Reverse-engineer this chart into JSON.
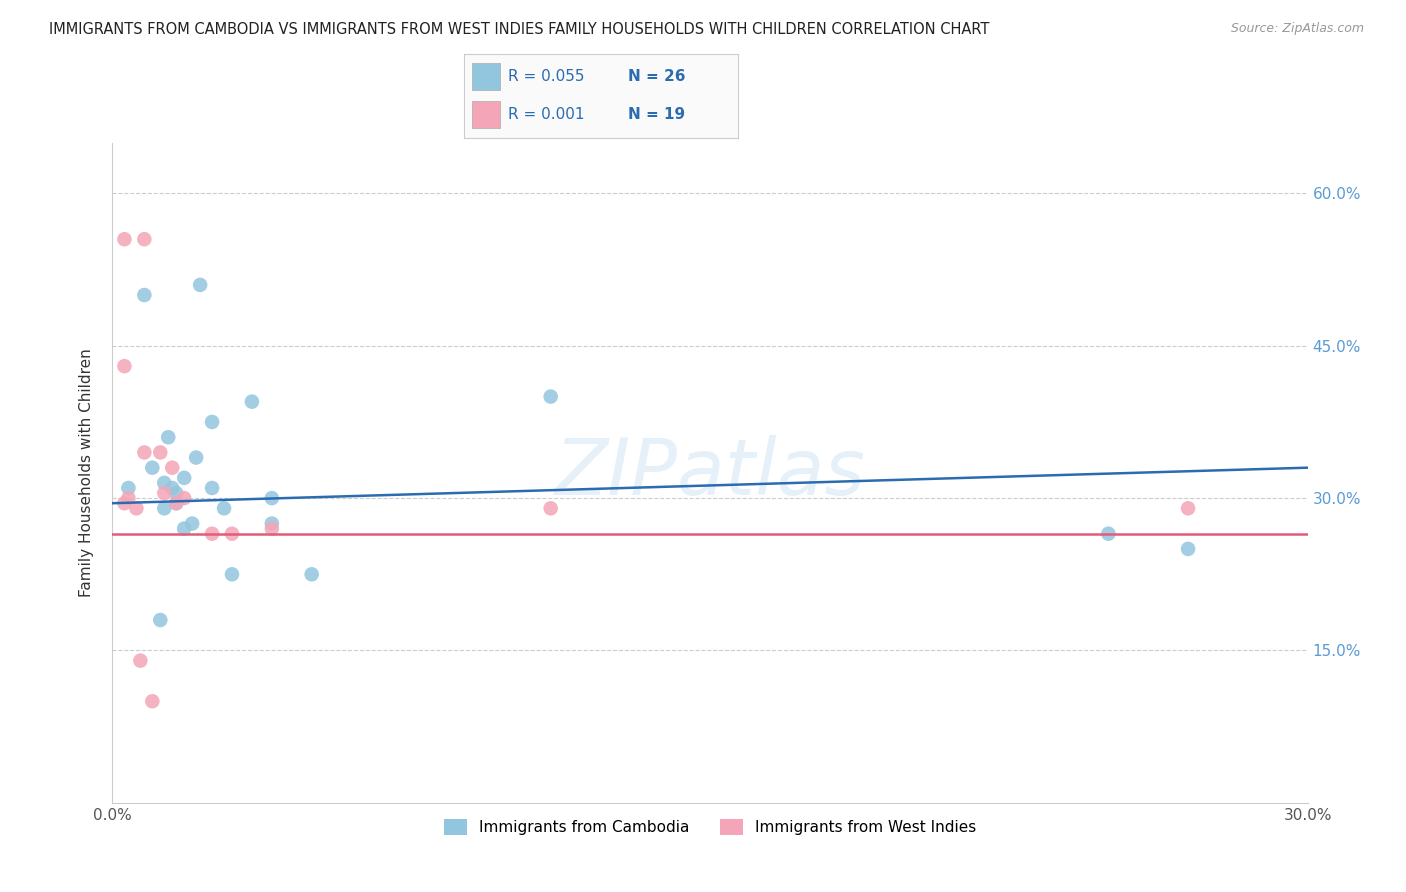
{
  "title": "IMMIGRANTS FROM CAMBODIA VS IMMIGRANTS FROM WEST INDIES FAMILY HOUSEHOLDS WITH CHILDREN CORRELATION CHART",
  "source": "Source: ZipAtlas.com",
  "ylabel": "Family Households with Children",
  "xlim": [
    0.0,
    0.3
  ],
  "ylim": [
    0.0,
    0.65
  ],
  "watermark": "ZIPatlas",
  "blue_color": "#92c5de",
  "pink_color": "#f4a6b8",
  "blue_line_color": "#2b6cb0",
  "pink_line_color": "#e05c7a",
  "scatter_blue_x": [
    0.004,
    0.01,
    0.013,
    0.016,
    0.018,
    0.016,
    0.013,
    0.015,
    0.021,
    0.014,
    0.02,
    0.018,
    0.025,
    0.04,
    0.035,
    0.025,
    0.028,
    0.04,
    0.022,
    0.03,
    0.05,
    0.11,
    0.25,
    0.27,
    0.012,
    0.008
  ],
  "scatter_blue_y": [
    0.31,
    0.33,
    0.315,
    0.305,
    0.32,
    0.295,
    0.29,
    0.31,
    0.34,
    0.36,
    0.275,
    0.27,
    0.375,
    0.3,
    0.395,
    0.31,
    0.29,
    0.275,
    0.51,
    0.225,
    0.225,
    0.4,
    0.265,
    0.25,
    0.18,
    0.5
  ],
  "scatter_pink_x": [
    0.003,
    0.008,
    0.012,
    0.015,
    0.013,
    0.016,
    0.018,
    0.003,
    0.006,
    0.003,
    0.008,
    0.004,
    0.025,
    0.04,
    0.03,
    0.11,
    0.27,
    0.007,
    0.01
  ],
  "scatter_pink_y": [
    0.43,
    0.345,
    0.345,
    0.33,
    0.305,
    0.295,
    0.3,
    0.295,
    0.29,
    0.555,
    0.555,
    0.3,
    0.265,
    0.27,
    0.265,
    0.29,
    0.29,
    0.14,
    0.1
  ],
  "blue_trend_x": [
    0.0,
    0.3
  ],
  "blue_trend_y": [
    0.295,
    0.33
  ],
  "pink_trend_y": [
    0.265,
    0.265
  ],
  "legend_label_blue": "Immigrants from Cambodia",
  "legend_label_pink": "Immigrants from West Indies",
  "background_color": "#ffffff",
  "grid_color": "#cccccc",
  "legend_blue_r": "R = 0.055",
  "legend_blue_n": "N = 26",
  "legend_pink_r": "R = 0.001",
  "legend_pink_n": "N = 19"
}
